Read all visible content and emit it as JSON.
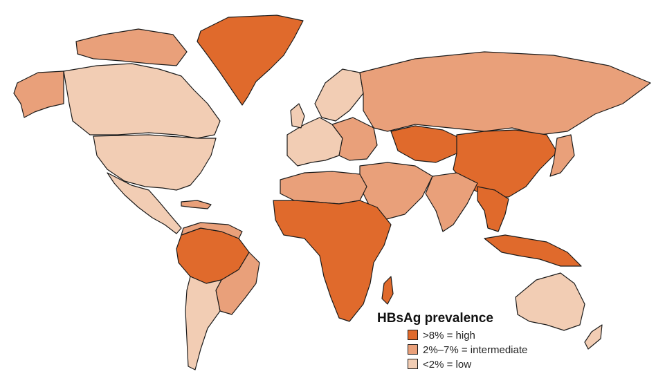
{
  "legend": {
    "title": "HBsAg prevalence",
    "items": [
      {
        "label": ">8% = high",
        "color": "#e06a2c"
      },
      {
        "label": "2%–7% = intermediate",
        "color": "#e9a07a"
      },
      {
        "label": "<2% = low",
        "color": "#f2cdb4"
      }
    ]
  },
  "colors": {
    "high": "#e06a2c",
    "intermediate": "#e9a07a",
    "low": "#f2cdb4",
    "border": "#1a1a1a",
    "background": "#ffffff"
  }
}
